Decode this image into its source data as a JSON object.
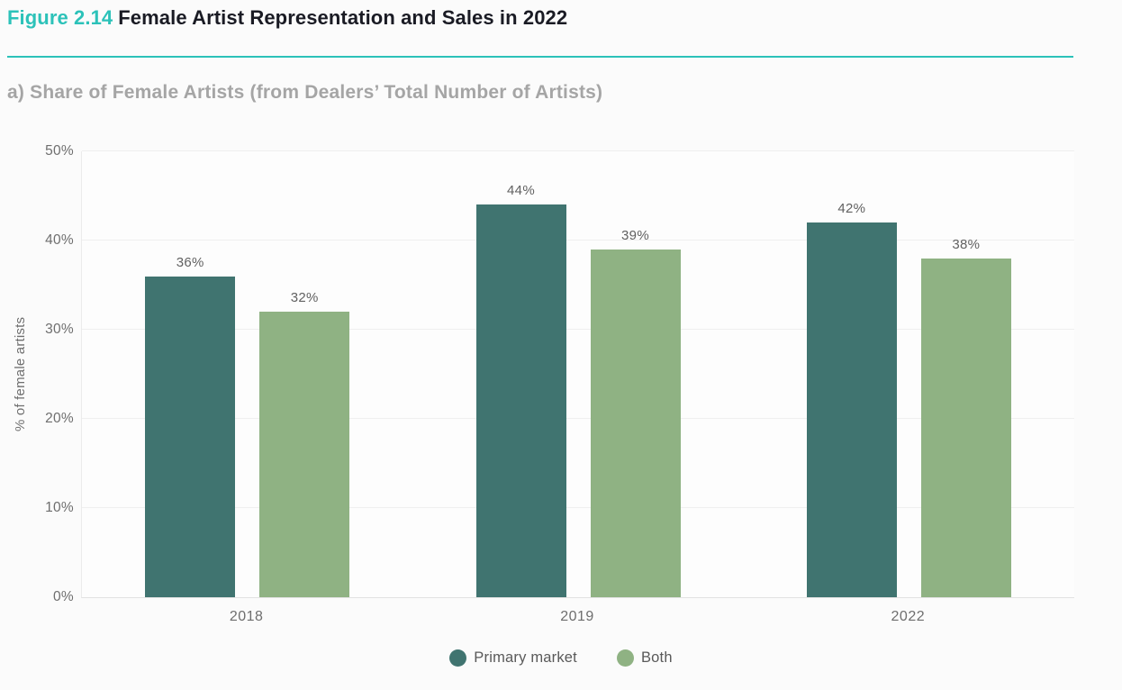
{
  "header": {
    "figure_label": "Figure 2.14",
    "title": "Female Artist Representation and Sales in 2022"
  },
  "accent_color": "#2cc2b9",
  "chart_data": {
    "type": "bar",
    "title": "a) Share of Female Artists (from Dealers’ Total Number of Artists)",
    "categories": [
      "2018",
      "2019",
      "2022"
    ],
    "series": [
      {
        "name": "Primary market",
        "color": "#407470",
        "values": [
          36,
          44,
          42
        ],
        "labels": [
          "36%",
          "44%",
          "42%"
        ]
      },
      {
        "name": "Both",
        "color": "#8fb283",
        "values": [
          32,
          39,
          38
        ],
        "labels": [
          "32%",
          "39%",
          "38%"
        ]
      }
    ],
    "ylabel": "% of female artists",
    "ylim": [
      0,
      50
    ],
    "yticks": [
      "0%",
      "10%",
      "20%",
      "30%",
      "40%",
      "50%"
    ],
    "value_suffix": "%",
    "grid": true,
    "legend_position": "bottom"
  }
}
